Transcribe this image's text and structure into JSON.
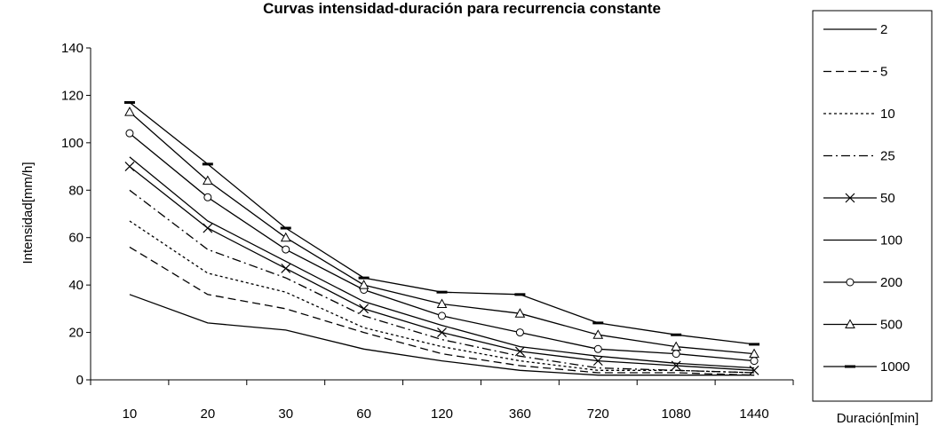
{
  "chart_data": {
    "type": "line",
    "title": "Curvas intensidad-duración para recurrencia constante",
    "xlabel": "Duración[min]",
    "ylabel": "Intensidad[mm/h]",
    "categories": [
      "10",
      "20",
      "30",
      "60",
      "120",
      "360",
      "720",
      "1080",
      "1440"
    ],
    "ylim": [
      0,
      140
    ],
    "yticks": [
      0,
      20,
      40,
      60,
      80,
      100,
      120,
      140
    ],
    "grid": false,
    "legend_position": "right",
    "series": [
      {
        "name": "2",
        "values": [
          36,
          24,
          21,
          13,
          8,
          4,
          2,
          2,
          2
        ],
        "style": "solid",
        "marker": "none"
      },
      {
        "name": "5",
        "values": [
          56,
          36,
          30,
          20,
          11,
          6,
          3,
          3,
          2
        ],
        "style": "dashed",
        "marker": "none"
      },
      {
        "name": "10",
        "values": [
          67,
          45,
          37,
          22,
          14,
          8,
          4,
          4,
          3
        ],
        "style": "dotted",
        "marker": "none"
      },
      {
        "name": "25",
        "values": [
          80,
          55,
          43,
          27,
          17,
          10,
          5,
          4,
          3
        ],
        "style": "dashdot",
        "marker": "none"
      },
      {
        "name": "50",
        "values": [
          90,
          64,
          47,
          30,
          20,
          12,
          8,
          6,
          4
        ],
        "style": "solid",
        "marker": "x"
      },
      {
        "name": "100",
        "values": [
          94,
          67,
          50,
          33,
          23,
          14,
          10,
          7,
          5
        ],
        "style": "solid",
        "marker": "none"
      },
      {
        "name": "200",
        "values": [
          104,
          77,
          55,
          38,
          27,
          20,
          13,
          11,
          8
        ],
        "style": "solid",
        "marker": "circle"
      },
      {
        "name": "500",
        "values": [
          113,
          84,
          60,
          40,
          32,
          28,
          19,
          14,
          11
        ],
        "style": "solid",
        "marker": "triangle"
      },
      {
        "name": "1000",
        "values": [
          117,
          91,
          64,
          43,
          37,
          36,
          24,
          19,
          15
        ],
        "style": "solid",
        "marker": "bar"
      }
    ]
  }
}
